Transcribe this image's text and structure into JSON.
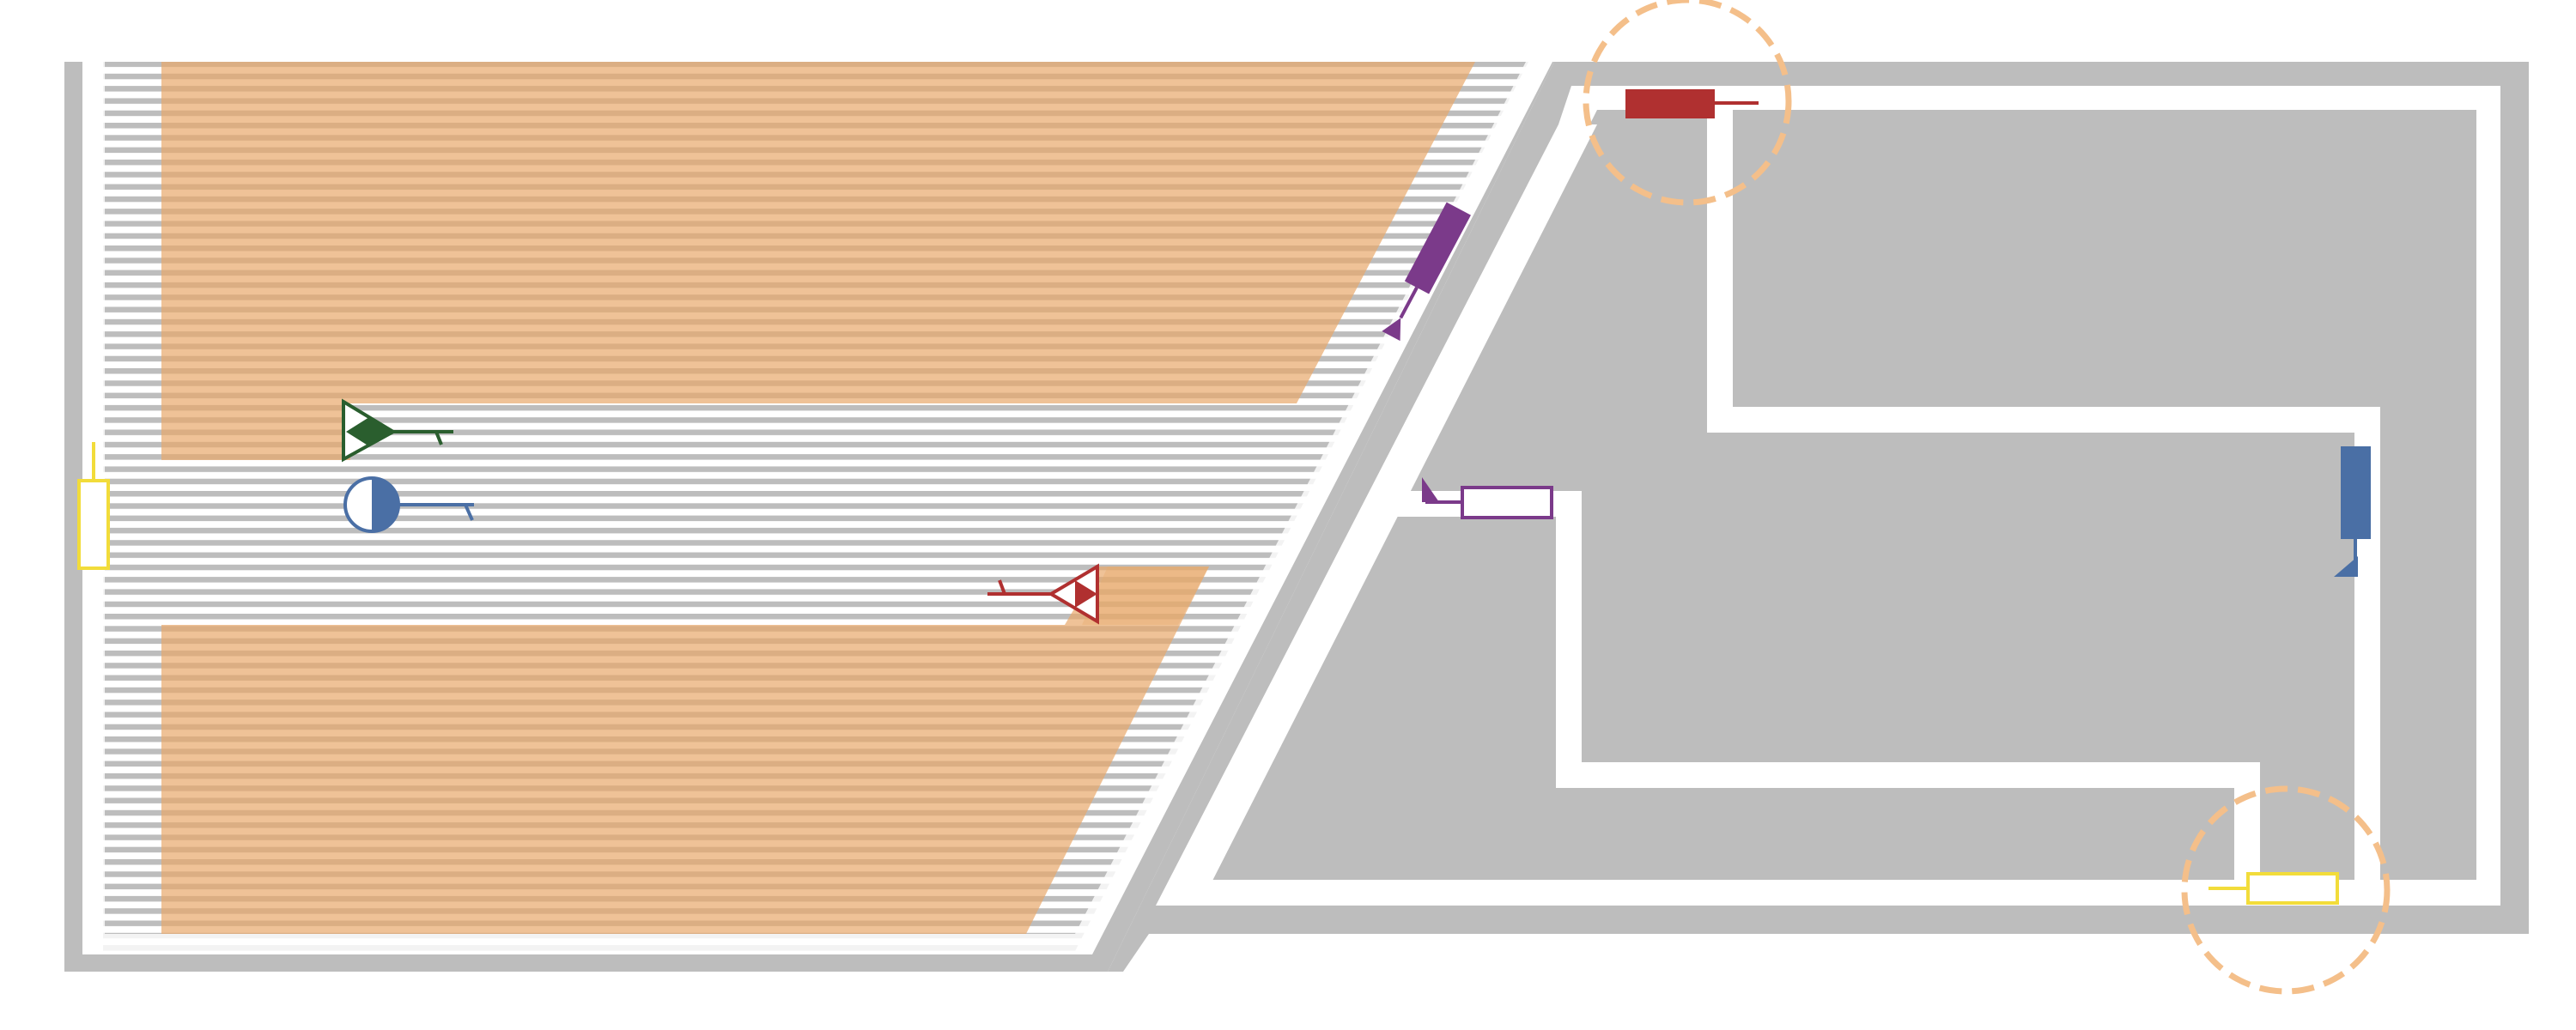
{
  "colors": {
    "wall": "#bdbdbd",
    "floor": "#ffffff",
    "stripe": "#bdbdbd",
    "orange_zone": "#e8a86a",
    "orange_circle": "#f4bf8a",
    "red": "#b03030",
    "purple": "#7b3a8a",
    "blue": "#4a6fa5",
    "green": "#2a5e2e",
    "yellow": "#f2dc3a"
  },
  "icons": {
    "doors": [
      "door-icon"
    ],
    "symbols": [
      "green-triangle-icon",
      "blue-semicircle-icon",
      "red-triangle-icon"
    ],
    "highlights": [
      "dashed-circle-icon"
    ]
  },
  "legend_note": ""
}
